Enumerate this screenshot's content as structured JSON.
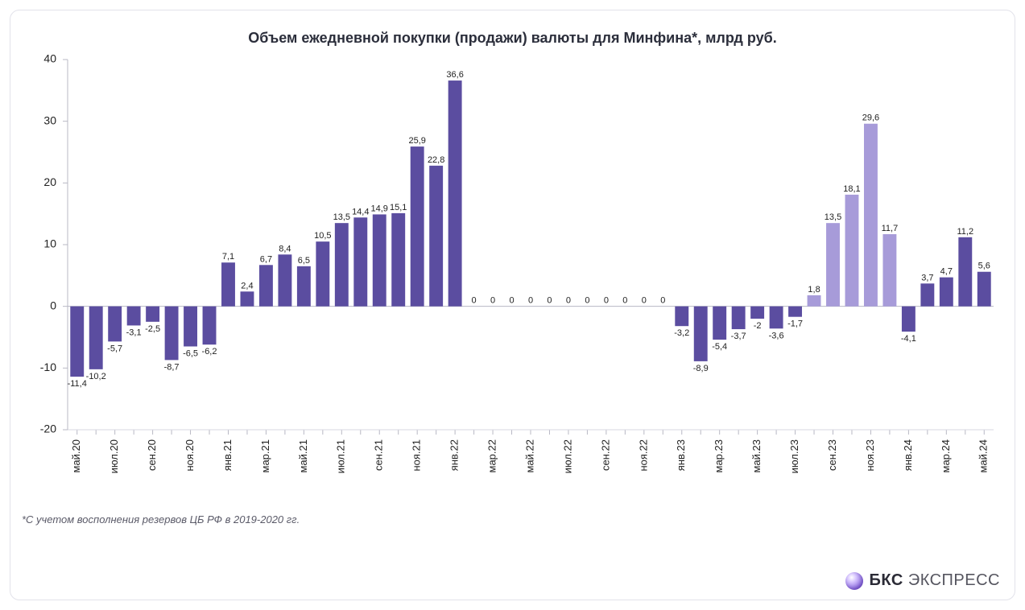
{
  "chart": {
    "type": "bar",
    "title": "Объем ежедневной покупки (продажи) валюты для Минфина*, млрд руб.",
    "title_fontsize": 18,
    "title_color": "#2b2e3b",
    "background_color": "#ffffff",
    "border_color": "#e2e2ea",
    "axis_color": "#b8b8c4",
    "ylim": [
      -20,
      40
    ],
    "yticks": [
      -20,
      -10,
      0,
      10,
      20,
      30,
      40
    ],
    "label_fontsize": 14,
    "value_label_fontsize": 11,
    "bar_width_ratio": 0.72,
    "primary_color": "#5b4da0",
    "secondary_color": "#a79bd9",
    "categories_visible": [
      "май.20",
      "июл.20",
      "сен.20",
      "ноя.20",
      "янв.21",
      "мар.21",
      "май.21",
      "июл.21",
      "сен.21",
      "ноя.21",
      "янв.22",
      "мар.22",
      "май.22",
      "июл.22",
      "сен.22",
      "ноя.22",
      "янв.23",
      "мар.23",
      "май.23",
      "июл.23",
      "сен.23",
      "ноя.23",
      "янв.24",
      "мар.24",
      "май.24"
    ],
    "xtick_label_fontsize": 13,
    "series": [
      {
        "label": "май.20",
        "value": -11.4,
        "color": "#5b4da0"
      },
      {
        "label": "",
        "value": -10.2,
        "color": "#5b4da0"
      },
      {
        "label": "июл.20",
        "value": -5.7,
        "color": "#5b4da0"
      },
      {
        "label": "",
        "value": -3.1,
        "color": "#5b4da0"
      },
      {
        "label": "сен.20",
        "value": -2.5,
        "color": "#5b4da0"
      },
      {
        "label": "",
        "value": -8.7,
        "color": "#5b4da0"
      },
      {
        "label": "ноя.20",
        "value": -6.5,
        "color": "#5b4da0"
      },
      {
        "label": "",
        "value": -6.2,
        "color": "#5b4da0"
      },
      {
        "label": "янв.21",
        "value": 7.1,
        "color": "#5b4da0"
      },
      {
        "label": "",
        "value": 2.4,
        "color": "#5b4da0"
      },
      {
        "label": "мар.21",
        "value": 6.7,
        "color": "#5b4da0"
      },
      {
        "label": "",
        "value": 8.4,
        "color": "#5b4da0"
      },
      {
        "label": "май.21",
        "value": 6.5,
        "color": "#5b4da0"
      },
      {
        "label": "",
        "value": 10.5,
        "color": "#5b4da0"
      },
      {
        "label": "июл.21",
        "value": 13.5,
        "color": "#5b4da0"
      },
      {
        "label": "",
        "value": 14.4,
        "color": "#5b4da0"
      },
      {
        "label": "сен.21",
        "value": 14.9,
        "color": "#5b4da0"
      },
      {
        "label": "",
        "value": 15.1,
        "color": "#5b4da0"
      },
      {
        "label": "ноя.21",
        "value": 25.9,
        "color": "#5b4da0"
      },
      {
        "label": "",
        "value": 22.8,
        "color": "#5b4da0"
      },
      {
        "label": "янв.22",
        "value": 36.6,
        "color": "#5b4da0"
      },
      {
        "label": "",
        "value": 0,
        "color": "#5b4da0"
      },
      {
        "label": "мар.22",
        "value": 0,
        "color": "#5b4da0"
      },
      {
        "label": "",
        "value": 0,
        "color": "#5b4da0"
      },
      {
        "label": "май.22",
        "value": 0,
        "color": "#5b4da0"
      },
      {
        "label": "",
        "value": 0,
        "color": "#5b4da0"
      },
      {
        "label": "июл.22",
        "value": 0,
        "color": "#5b4da0"
      },
      {
        "label": "",
        "value": 0,
        "color": "#5b4da0"
      },
      {
        "label": "сен.22",
        "value": 0,
        "color": "#5b4da0"
      },
      {
        "label": "",
        "value": 0,
        "color": "#5b4da0"
      },
      {
        "label": "ноя.22",
        "value": 0,
        "color": "#5b4da0"
      },
      {
        "label": "",
        "value": 0,
        "color": "#5b4da0"
      },
      {
        "label": "янв.23",
        "value": -3.2,
        "color": "#5b4da0"
      },
      {
        "label": "",
        "value": -8.9,
        "color": "#5b4da0"
      },
      {
        "label": "мар.23",
        "value": -5.4,
        "color": "#5b4da0"
      },
      {
        "label": "",
        "value": -3.7,
        "color": "#5b4da0"
      },
      {
        "label": "май.23",
        "value": -2.0,
        "color": "#5b4da0"
      },
      {
        "label": "",
        "value": -3.6,
        "color": "#5b4da0"
      },
      {
        "label": "июл.23",
        "value": -1.7,
        "color": "#5b4da0"
      },
      {
        "label": "",
        "value": 1.8,
        "color": "#a79bd9"
      },
      {
        "label": "сен.23",
        "value": 13.5,
        "color": "#a79bd9"
      },
      {
        "label": "",
        "value": 18.1,
        "color": "#a79bd9"
      },
      {
        "label": "ноя.23",
        "value": 29.6,
        "color": "#a79bd9"
      },
      {
        "label": "",
        "value": 11.7,
        "color": "#a79bd9"
      },
      {
        "label": "янв.24",
        "value": -4.1,
        "color": "#5b4da0"
      },
      {
        "label": "",
        "value": 3.7,
        "color": "#5b4da0"
      },
      {
        "label": "мар.24",
        "value": 4.7,
        "color": "#5b4da0"
      },
      {
        "label": "",
        "value": 11.2,
        "color": "#5b4da0"
      },
      {
        "label": "май.24",
        "value": 5.6,
        "color": "#5b4da0"
      }
    ]
  },
  "footnote": "*С учетом восполнения резервов ЦБ РФ в 2019-2020 гг.",
  "brand": {
    "bold": "БКС",
    "light": "ЭКСПРЕСС"
  }
}
